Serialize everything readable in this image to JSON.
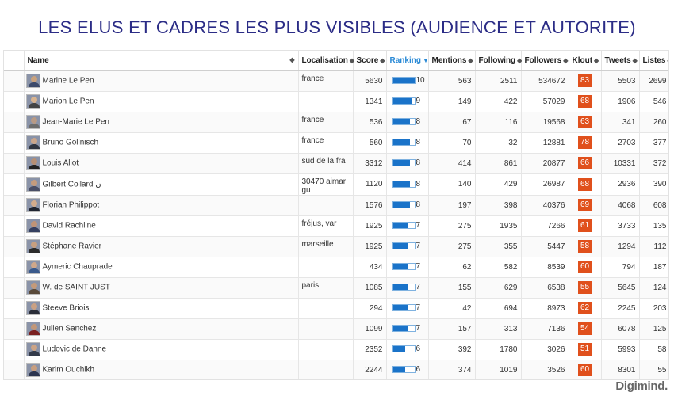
{
  "title": "LES  ELUS ET CADRES LES PLUS VISIBLES (AUDIENCE ET AUTORITE)",
  "columns": {
    "name": "Name",
    "localisation": "Localisation",
    "score": "Score",
    "ranking": "Ranking",
    "mentions": "Mentions",
    "following": "Following",
    "followers": "Followers",
    "klout": "Klout",
    "tweets": "Tweets",
    "listes": "Listes"
  },
  "colors": {
    "accent": "#2a8ad6",
    "klout": "#e0501c",
    "title": "#2b2c86",
    "bar": "#1a73c9"
  },
  "ranking_max": 10,
  "rows": [
    {
      "name": "Marine Le Pen",
      "localisation": "france",
      "score": "5630",
      "ranking": 10,
      "mentions": "563",
      "following": "2511",
      "followers": "534672",
      "klout": "83",
      "tweets": "5503",
      "listes": "2699"
    },
    {
      "name": "Marion Le Pen",
      "localisation": "",
      "score": "1341",
      "ranking": 9,
      "mentions": "149",
      "following": "422",
      "followers": "57029",
      "klout": "68",
      "tweets": "1906",
      "listes": "546"
    },
    {
      "name": "Jean-Marie Le Pen",
      "localisation": "france",
      "score": "536",
      "ranking": 8,
      "mentions": "67",
      "following": "116",
      "followers": "19568",
      "klout": "63",
      "tweets": "341",
      "listes": "260"
    },
    {
      "name": "Bruno Gollnisch",
      "localisation": "france",
      "score": "560",
      "ranking": 8,
      "mentions": "70",
      "following": "32",
      "followers": "12881",
      "klout": "78",
      "tweets": "2703",
      "listes": "377"
    },
    {
      "name": "Louis Aliot",
      "localisation": "sud de la fra",
      "score": "3312",
      "ranking": 8,
      "mentions": "414",
      "following": "861",
      "followers": "20877",
      "klout": "66",
      "tweets": "10331",
      "listes": "372"
    },
    {
      "name": "Gilbert Collard ن",
      "localisation": "30470 aimargu",
      "score": "1120",
      "ranking": 8,
      "mentions": "140",
      "following": "429",
      "followers": "26987",
      "klout": "68",
      "tweets": "2936",
      "listes": "390"
    },
    {
      "name": "Florian Philippot",
      "localisation": "",
      "score": "1576",
      "ranking": 8,
      "mentions": "197",
      "following": "398",
      "followers": "40376",
      "klout": "69",
      "tweets": "4068",
      "listes": "608"
    },
    {
      "name": "David Rachline",
      "localisation": "fréjus, var",
      "score": "1925",
      "ranking": 7,
      "mentions": "275",
      "following": "1935",
      "followers": "7266",
      "klout": "61",
      "tweets": "3733",
      "listes": "135"
    },
    {
      "name": "Stéphane Ravier",
      "localisation": "marseille",
      "score": "1925",
      "ranking": 7,
      "mentions": "275",
      "following": "355",
      "followers": "5447",
      "klout": "58",
      "tweets": "1294",
      "listes": "112"
    },
    {
      "name": "Aymeric Chauprade",
      "localisation": "",
      "score": "434",
      "ranking": 7,
      "mentions": "62",
      "following": "582",
      "followers": "8539",
      "klout": "60",
      "tweets": "794",
      "listes": "187"
    },
    {
      "name": "W. de SAINT JUST",
      "localisation": "paris",
      "score": "1085",
      "ranking": 7,
      "mentions": "155",
      "following": "629",
      "followers": "6538",
      "klout": "55",
      "tweets": "5645",
      "listes": "124"
    },
    {
      "name": "Steeve Briois",
      "localisation": "",
      "score": "294",
      "ranking": 7,
      "mentions": "42",
      "following": "694",
      "followers": "8973",
      "klout": "62",
      "tweets": "2245",
      "listes": "203"
    },
    {
      "name": "Julien Sanchez",
      "localisation": "",
      "score": "1099",
      "ranking": 7,
      "mentions": "157",
      "following": "313",
      "followers": "7136",
      "klout": "54",
      "tweets": "6078",
      "listes": "125"
    },
    {
      "name": "Ludovic de Danne",
      "localisation": "",
      "score": "2352",
      "ranking": 6,
      "mentions": "392",
      "following": "1780",
      "followers": "3026",
      "klout": "51",
      "tweets": "5993",
      "listes": "58"
    },
    {
      "name": "Karim Ouchikh",
      "localisation": "",
      "score": "2244",
      "ranking": 6,
      "mentions": "374",
      "following": "1019",
      "followers": "3526",
      "klout": "60",
      "tweets": "8301",
      "listes": "55"
    }
  ],
  "logo": "Digimind."
}
